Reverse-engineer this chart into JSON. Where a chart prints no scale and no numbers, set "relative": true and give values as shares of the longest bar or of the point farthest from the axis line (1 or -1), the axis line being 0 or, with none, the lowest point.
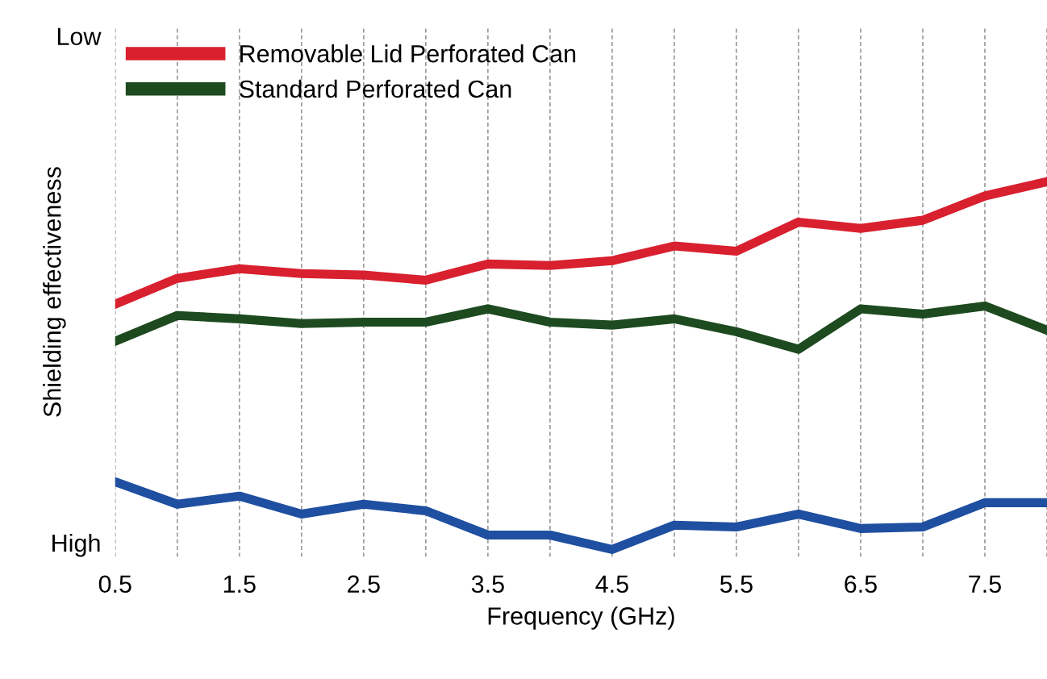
{
  "chart_data": {
    "type": "line",
    "relative": true,
    "xlabel": "Frequency (GHz)",
    "ylabel": "Shielding effectiveness",
    "annotations": [
      "Low",
      "High"
    ],
    "x": [
      0.5,
      1.0,
      1.5,
      2.0,
      2.5,
      3.0,
      3.5,
      4.0,
      4.5,
      5.0,
      5.5,
      6.0,
      6.5,
      7.0,
      7.5,
      8.0
    ],
    "xlim": [
      0.5,
      8.0
    ],
    "xticks": [
      0.5,
      {
        "value": 1.0,
        "label": null
      },
      1.5,
      {
        "value": 2.0,
        "label": null
      },
      2.5,
      {
        "value": 3.0,
        "label": null
      },
      3.5,
      {
        "value": 4.0,
        "label": null
      },
      4.5,
      {
        "value": 5.0,
        "label": null
      },
      5.5,
      {
        "value": 6.0,
        "label": null
      },
      6.5,
      {
        "value": 7.0,
        "label": null
      },
      7.5,
      {
        "value": 8.0,
        "label": null
      }
    ],
    "grid": "x",
    "legend": "top left",
    "line_style": "solid",
    "series": [
      {
        "name": "Removable Lid Perforated Can",
        "color": "#d8202f",
        "values": [
          0.667,
          0.737,
          0.763,
          0.75,
          0.746,
          0.732,
          0.776,
          0.772,
          0.785,
          0.825,
          0.811,
          0.89,
          0.873,
          0.895,
          0.961,
          1
        ]
      },
      {
        "name": "Standard Perforated Can",
        "color": "#1d4a1f",
        "values": [
          0.566,
          0.636,
          0.627,
          0.614,
          0.618,
          0.618,
          0.654,
          0.618,
          0.61,
          0.627,
          0.592,
          0.544,
          0.654,
          0.64,
          0.662,
          0.596
        ]
      },
      {
        "color": "#1f4fa0",
        "values": [
          0.184,
          0.123,
          0.145,
          0.096,
          0.123,
          0.105,
          0.039,
          0.039,
          0,
          0.066,
          0.061,
          0.096,
          0.057,
          0.061,
          0.127,
          0.127
        ]
      }
    ]
  }
}
